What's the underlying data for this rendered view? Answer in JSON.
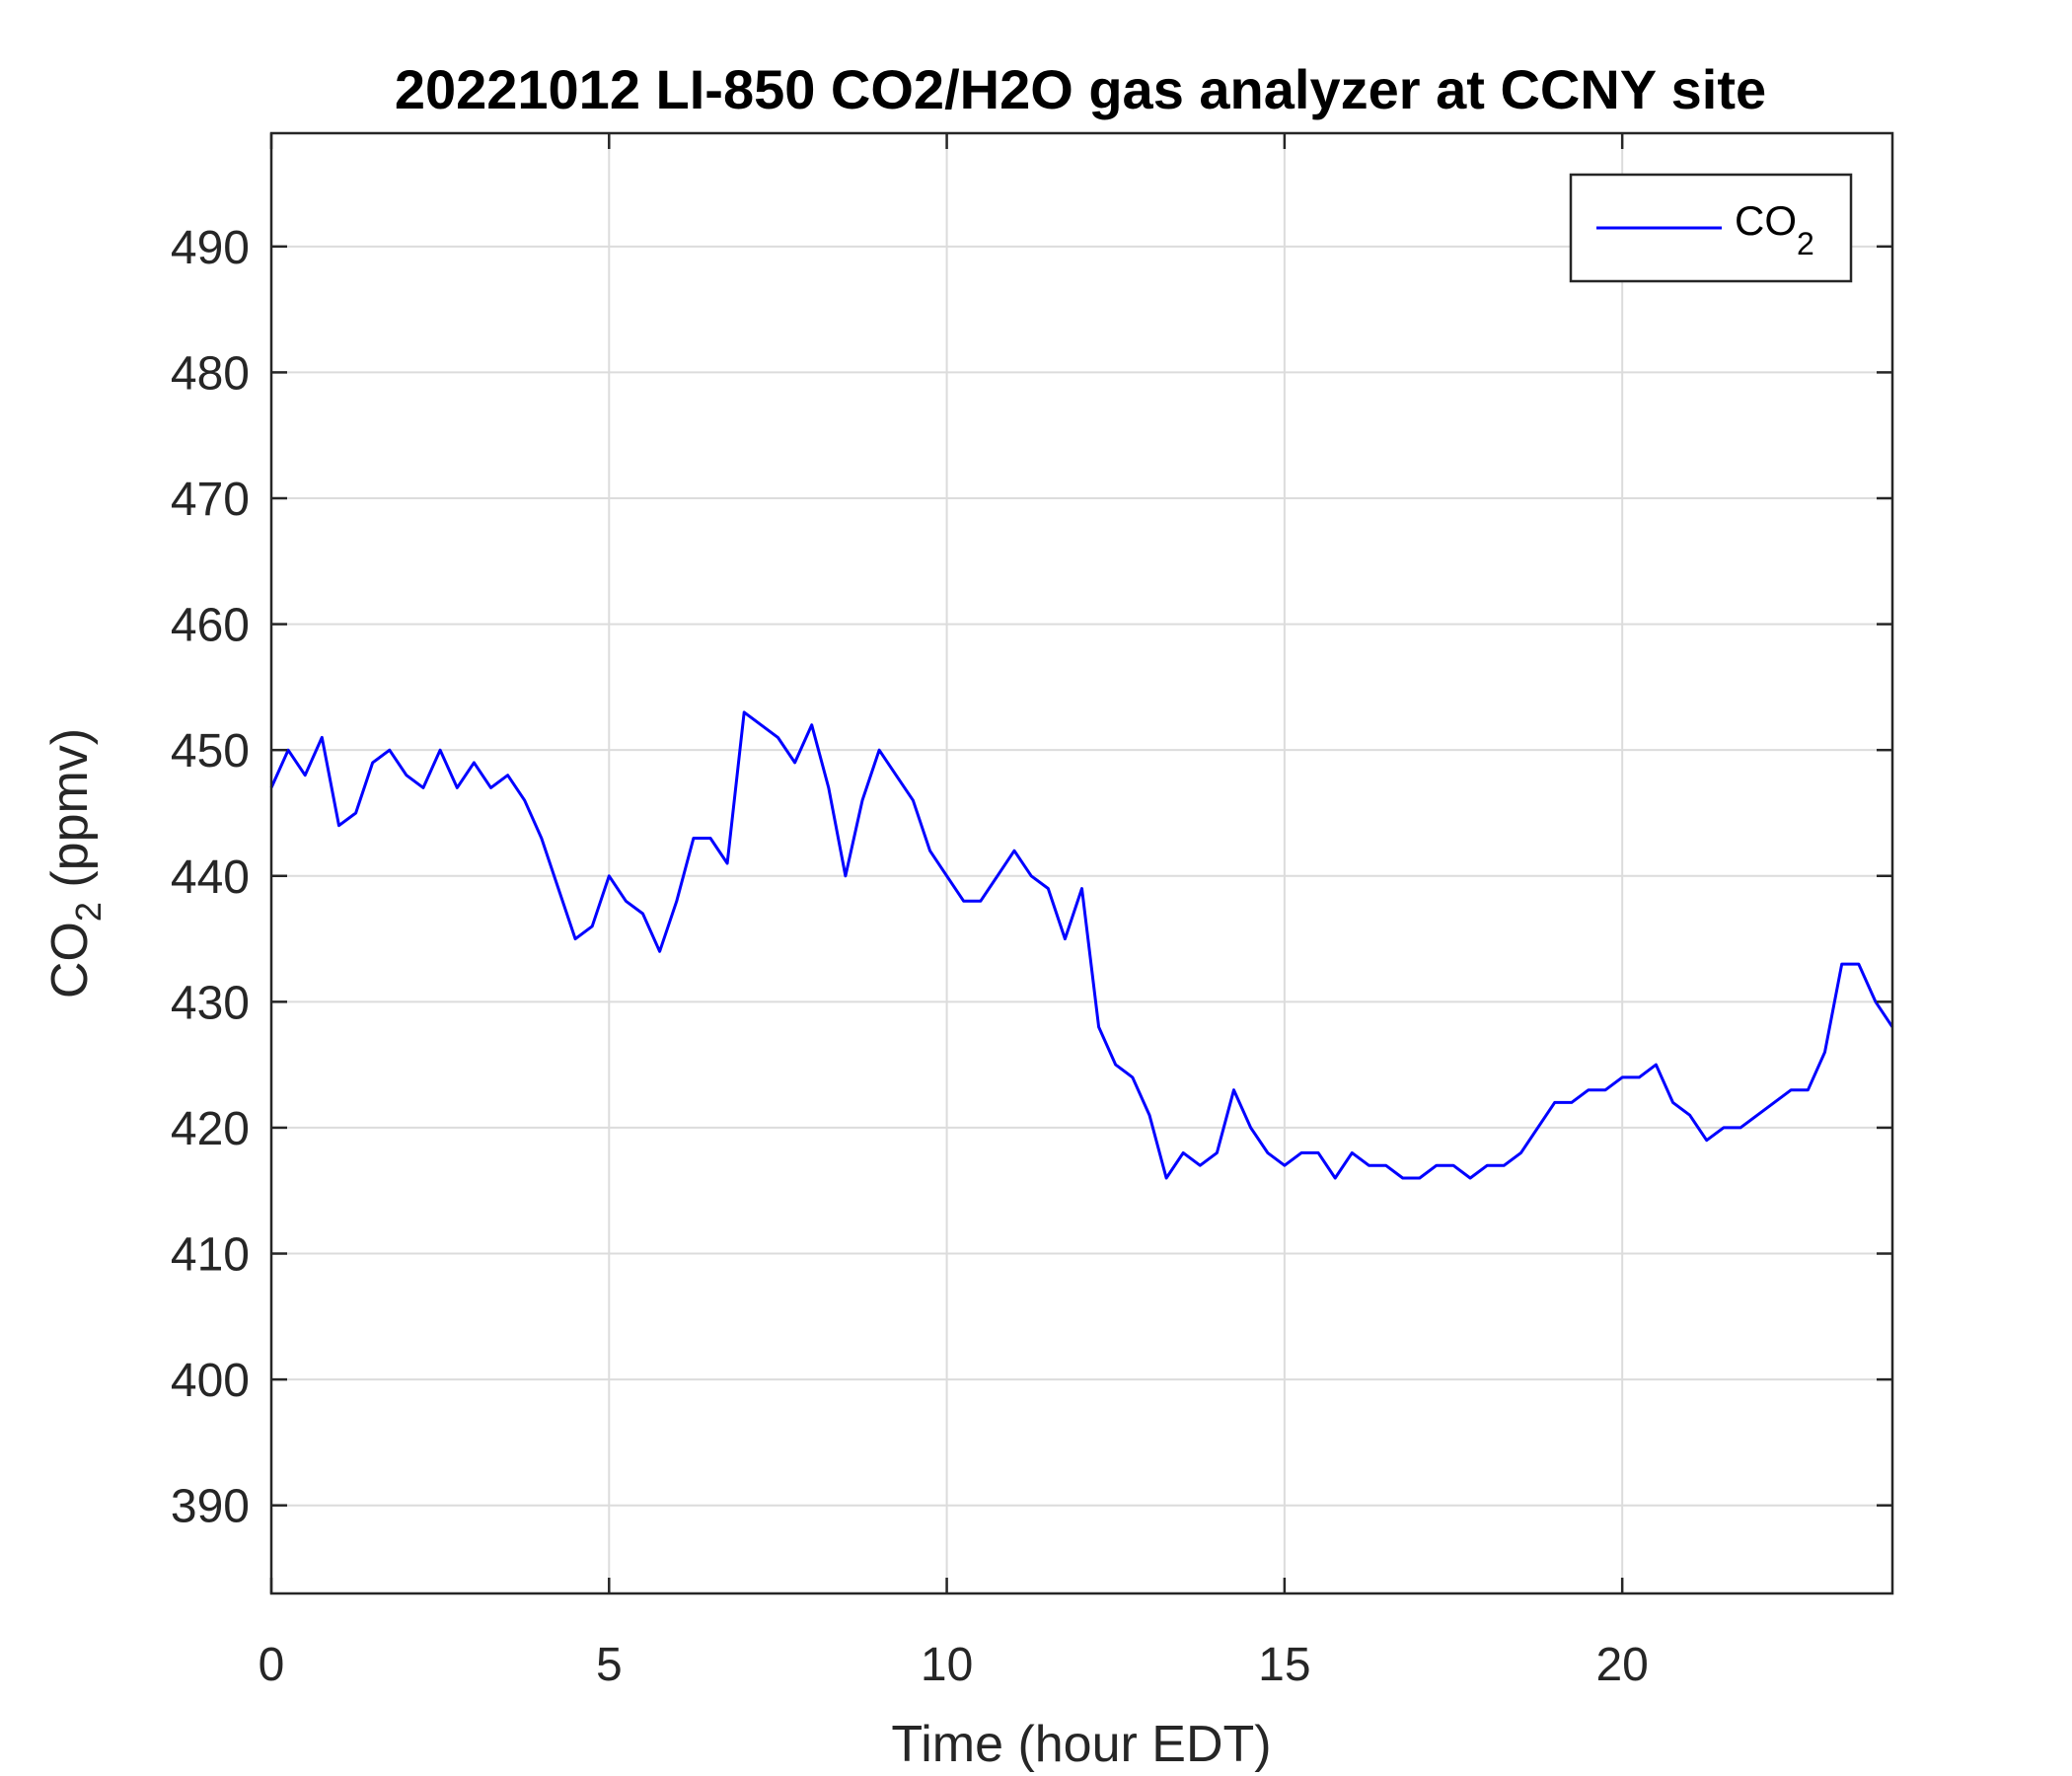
{
  "chart_data": {
    "type": "line",
    "title": "20221012 LI-850 CO2/H2O gas analyzer at CCNY site",
    "xlabel": "Time (hour EDT)",
    "ylabel": {
      "main": "CO",
      "sub": "2",
      "tail": " (ppmv)"
    },
    "xlim": [
      0,
      24
    ],
    "ylim": [
      383,
      499
    ],
    "xticks": [
      0,
      5,
      10,
      15,
      20
    ],
    "yticks": [
      390,
      400,
      410,
      420,
      430,
      440,
      450,
      460,
      470,
      480,
      490
    ],
    "grid": true,
    "legend": {
      "placement": "top-right",
      "entries": [
        {
          "main": "CO",
          "sub": "2"
        }
      ]
    },
    "series": [
      {
        "name": "CO2",
        "color": "#0000ff",
        "x": [
          0,
          0.25,
          0.5,
          0.75,
          1.0,
          1.25,
          1.5,
          1.75,
          2.0,
          2.25,
          2.5,
          2.75,
          3.0,
          3.25,
          3.5,
          3.75,
          4.0,
          4.25,
          4.5,
          4.75,
          5.0,
          5.25,
          5.5,
          5.75,
          6.0,
          6.25,
          6.5,
          6.75,
          7.0,
          7.25,
          7.5,
          7.75,
          8.0,
          8.25,
          8.5,
          8.75,
          9.0,
          9.25,
          9.5,
          9.75,
          10.0,
          10.25,
          10.5,
          10.75,
          11.0,
          11.25,
          11.5,
          11.75,
          12.0,
          12.25,
          12.5,
          12.75,
          13.0,
          13.25,
          13.5,
          13.75,
          14.0,
          14.25,
          14.5,
          14.75,
          15.0,
          15.25,
          15.5,
          15.75,
          16.0,
          16.25,
          16.5,
          16.75,
          17.0,
          17.25,
          17.5,
          17.75,
          18.0,
          18.25,
          18.5,
          18.75,
          19.0,
          19.25,
          19.5,
          19.75,
          20.0,
          20.25,
          20.5,
          20.75,
          21.0,
          21.25,
          21.5,
          21.75,
          22.0,
          22.25,
          22.5,
          22.75,
          23.0,
          23.25,
          23.5,
          23.75,
          24.0
        ],
        "values": [
          447,
          450,
          448,
          451,
          444,
          445,
          449,
          450,
          448,
          447,
          450,
          447,
          449,
          447,
          448,
          446,
          443,
          439,
          435,
          436,
          440,
          438,
          437,
          434,
          438,
          443,
          443,
          441,
          453,
          452,
          451,
          449,
          452,
          447,
          440,
          446,
          450,
          448,
          446,
          442,
          440,
          438,
          438,
          440,
          442,
          440,
          439,
          435,
          439,
          428,
          425,
          424,
          421,
          416,
          418,
          417,
          418,
          423,
          420,
          418,
          417,
          418,
          418,
          416,
          418,
          417,
          417,
          416,
          416,
          417,
          417,
          416,
          417,
          417,
          418,
          420,
          422,
          422,
          423,
          423,
          424,
          424,
          425,
          422,
          421,
          419,
          420,
          420,
          421,
          422,
          423,
          423,
          426,
          433,
          433,
          430,
          428
        ]
      }
    ]
  }
}
